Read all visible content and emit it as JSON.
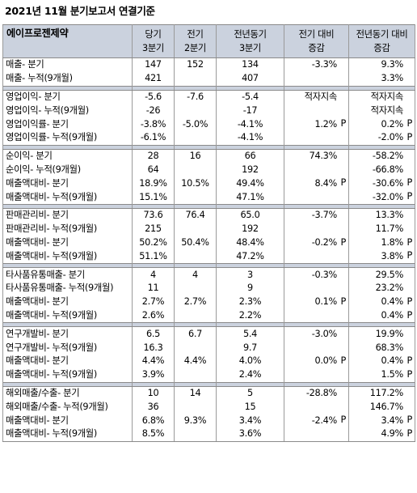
{
  "title": "2021년 11월 분기보고서 연결기준",
  "header": {
    "company": "에이프로젠제약",
    "col1": [
      "당기",
      "3분기"
    ],
    "col2": [
      "전기",
      "2분기"
    ],
    "col3": [
      "전년동기",
      "3분기"
    ],
    "col4": [
      "전기 대비",
      "증감"
    ],
    "col5": [
      "전년동기 대비",
      "증감"
    ]
  },
  "sections": [
    {
      "rows": [
        {
          "label": "매출- 분기",
          "cur": "147",
          "prev": "152",
          "yoy": "134",
          "qoq": "-3.3%",
          "qoq_p": "",
          "yoy_chg": "9.3%",
          "yoy_p": ""
        },
        {
          "label": "매출- 누적(9개월)",
          "cur": "421",
          "prev": "",
          "yoy": "407",
          "qoq": "",
          "qoq_p": "",
          "yoy_chg": "3.3%",
          "yoy_p": ""
        }
      ]
    },
    {
      "rows": [
        {
          "label": "영업이익- 분기",
          "cur": "-5.6",
          "prev": "-7.6",
          "yoy": "-5.4",
          "qoq": "적자지속",
          "qoq_p": "",
          "yoy_chg": "적자지속",
          "yoy_p": ""
        },
        {
          "label": "영업이익- 누적(9개월)",
          "cur": "-26",
          "prev": "",
          "yoy": "-17",
          "qoq": "",
          "qoq_p": "",
          "yoy_chg": "적자지속",
          "yoy_p": ""
        },
        {
          "label": "영업이익률- 분기",
          "cur": "-3.8%",
          "prev": "-5.0%",
          "yoy": "-4.1%",
          "qoq": "1.2%",
          "qoq_p": "P",
          "yoy_chg": "0.2%",
          "yoy_p": "P"
        },
        {
          "label": "영업이익률- 누적(9개월)",
          "cur": "-6.1%",
          "prev": "",
          "yoy": "-4.1%",
          "qoq": "",
          "qoq_p": "",
          "yoy_chg": "-2.0%",
          "yoy_p": "P"
        }
      ]
    },
    {
      "rows": [
        {
          "label": "순이익- 분기",
          "cur": "28",
          "prev": "16",
          "yoy": "66",
          "qoq": "74.3%",
          "qoq_p": "",
          "yoy_chg": "-58.2%",
          "yoy_p": ""
        },
        {
          "label": "순이익- 누적(9개월)",
          "cur": "64",
          "prev": "",
          "yoy": "192",
          "qoq": "",
          "qoq_p": "",
          "yoy_chg": "-66.8%",
          "yoy_p": ""
        },
        {
          "label": "매출액대비- 분기",
          "cur": "18.9%",
          "prev": "10.5%",
          "yoy": "49.4%",
          "qoq": "8.4%",
          "qoq_p": "P",
          "yoy_chg": "-30.6%",
          "yoy_p": "P"
        },
        {
          "label": "매출액대비- 누적(9개월)",
          "cur": "15.1%",
          "prev": "",
          "yoy": "47.1%",
          "qoq": "",
          "qoq_p": "",
          "yoy_chg": "-32.0%",
          "yoy_p": "P"
        }
      ]
    },
    {
      "rows": [
        {
          "label": "판매관리비- 분기",
          "cur": "73.6",
          "prev": "76.4",
          "yoy": "65.0",
          "qoq": "-3.7%",
          "qoq_p": "",
          "yoy_chg": "13.3%",
          "yoy_p": ""
        },
        {
          "label": "판매관리비- 누적(9개월)",
          "cur": "215",
          "prev": "",
          "yoy": "192",
          "qoq": "",
          "qoq_p": "",
          "yoy_chg": "11.7%",
          "yoy_p": ""
        },
        {
          "label": "매출액대비- 분기",
          "cur": "50.2%",
          "prev": "50.4%",
          "yoy": "48.4%",
          "qoq": "-0.2%",
          "qoq_p": "P",
          "yoy_chg": "1.8%",
          "yoy_p": "P"
        },
        {
          "label": "매출액대비- 누적(9개월)",
          "cur": "51.1%",
          "prev": "",
          "yoy": "47.2%",
          "qoq": "",
          "qoq_p": "",
          "yoy_chg": "3.8%",
          "yoy_p": "P"
        }
      ]
    },
    {
      "rows": [
        {
          "label": "타사품유통매출- 분기",
          "cur": "4",
          "prev": "4",
          "yoy": "3",
          "qoq": "-0.3%",
          "qoq_p": "",
          "yoy_chg": "29.5%",
          "yoy_p": ""
        },
        {
          "label": "타사품유통매출- 누적(9개월)",
          "cur": "11",
          "prev": "",
          "yoy": "9",
          "qoq": "",
          "qoq_p": "",
          "yoy_chg": "23.2%",
          "yoy_p": ""
        },
        {
          "label": "매출액대비- 분기",
          "cur": "2.7%",
          "prev": "2.7%",
          "yoy": "2.3%",
          "qoq": "0.1%",
          "qoq_p": "P",
          "yoy_chg": "0.4%",
          "yoy_p": "P"
        },
        {
          "label": "매출액대비- 누적(9개월)",
          "cur": "2.6%",
          "prev": "",
          "yoy": "2.2%",
          "qoq": "",
          "qoq_p": "",
          "yoy_chg": "0.4%",
          "yoy_p": "P"
        }
      ]
    },
    {
      "rows": [
        {
          "label": "연구개발비- 분기",
          "cur": "6.5",
          "prev": "6.7",
          "yoy": "5.4",
          "qoq": "-3.0%",
          "qoq_p": "",
          "yoy_chg": "19.9%",
          "yoy_p": ""
        },
        {
          "label": "연구개발비- 누적(9개월)",
          "cur": "16.3",
          "prev": "",
          "yoy": "9.7",
          "qoq": "",
          "qoq_p": "",
          "yoy_chg": "68.3%",
          "yoy_p": ""
        },
        {
          "label": "매출액대비- 분기",
          "cur": "4.4%",
          "prev": "4.4%",
          "yoy": "4.0%",
          "qoq": "0.0%",
          "qoq_p": "P",
          "yoy_chg": "0.4%",
          "yoy_p": "P"
        },
        {
          "label": "매출액대비- 누적(9개월)",
          "cur": "3.9%",
          "prev": "",
          "yoy": "2.4%",
          "qoq": "",
          "qoq_p": "",
          "yoy_chg": "1.5%",
          "yoy_p": "P"
        }
      ]
    },
    {
      "rows": [
        {
          "label": "해외매출/수출- 분기",
          "cur": "10",
          "prev": "14",
          "yoy": "5",
          "qoq": "-28.8%",
          "qoq_p": "",
          "yoy_chg": "117.2%",
          "yoy_p": ""
        },
        {
          "label": "해외매출/수출- 누적(9개월)",
          "cur": "36",
          "prev": "",
          "yoy": "15",
          "qoq": "",
          "qoq_p": "",
          "yoy_chg": "146.7%",
          "yoy_p": ""
        },
        {
          "label": "매출액대비- 분기",
          "cur": "6.8%",
          "prev": "9.3%",
          "yoy": "3.4%",
          "qoq": "-2.4%",
          "qoq_p": "P",
          "yoy_chg": "3.4%",
          "yoy_p": "P"
        },
        {
          "label": "매출액대비- 누적(9개월)",
          "cur": "8.5%",
          "prev": "",
          "yoy": "3.6%",
          "qoq": "",
          "qoq_p": "",
          "yoy_chg": "4.9%",
          "yoy_p": "P"
        }
      ]
    }
  ]
}
